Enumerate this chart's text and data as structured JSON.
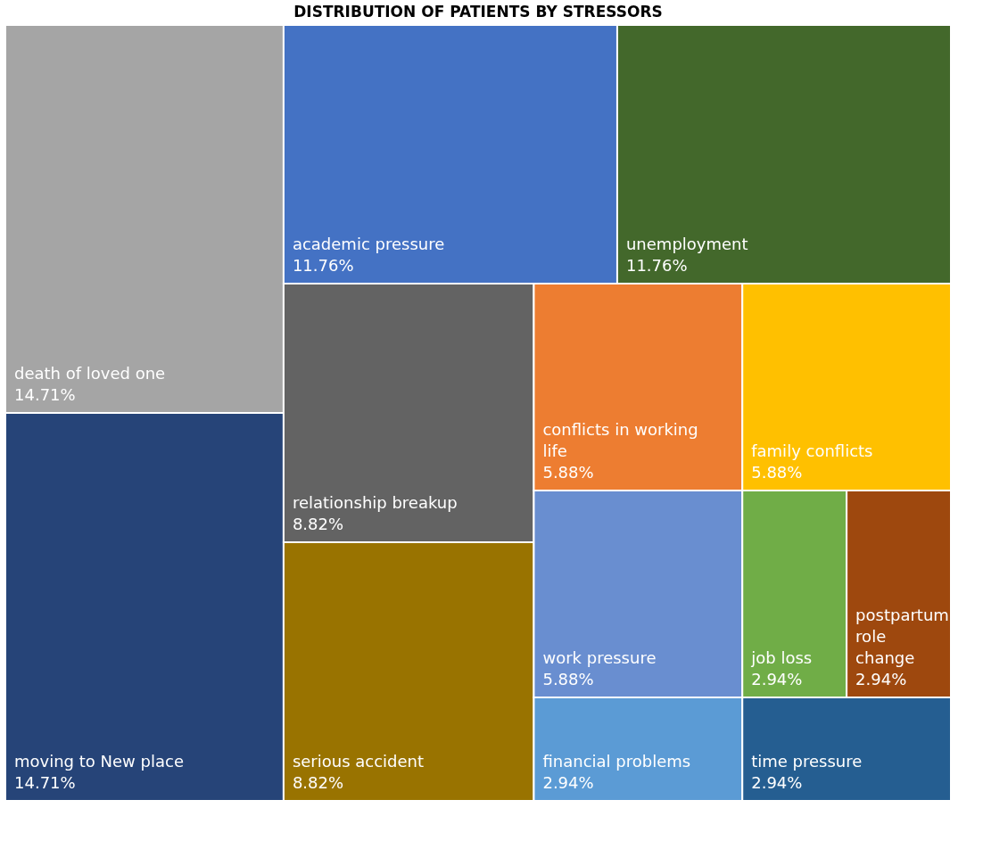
{
  "chart_data": {
    "type": "other",
    "title": "DISTRIBUTION OF PATIENTS BY STRESSORS",
    "categories": [
      "death of loved one",
      "moving to New place",
      "academic pressure",
      "unemployment",
      "relationship breakup",
      "serious accident",
      "conflicts in working life",
      "family conflicts",
      "work pressure",
      "financial problems",
      "job loss",
      "postpartum role change",
      "time pressure"
    ],
    "values": [
      14.71,
      14.71,
      11.76,
      11.76,
      8.82,
      8.82,
      5.88,
      5.88,
      5.88,
      2.94,
      2.94,
      2.94,
      2.94
    ],
    "data_labels": true,
    "value_labels": [
      "14.71%",
      "14.71%",
      "11.76%",
      "11.76%",
      "8.82%",
      "8.82%",
      "5.88%",
      "5.88%",
      "5.88%",
      "2.94%",
      "2.94%",
      "2.94%",
      "2.94%"
    ],
    "colors": [
      "#a5a5a5",
      "#264478",
      "#4472c4",
      "#43682b",
      "#636363",
      "#997300",
      "#ed7d31",
      "#ffc000",
      "#698ed0",
      "#5b9bd5",
      "#70ad47",
      "#9e480e",
      "#255e91"
    ]
  }
}
